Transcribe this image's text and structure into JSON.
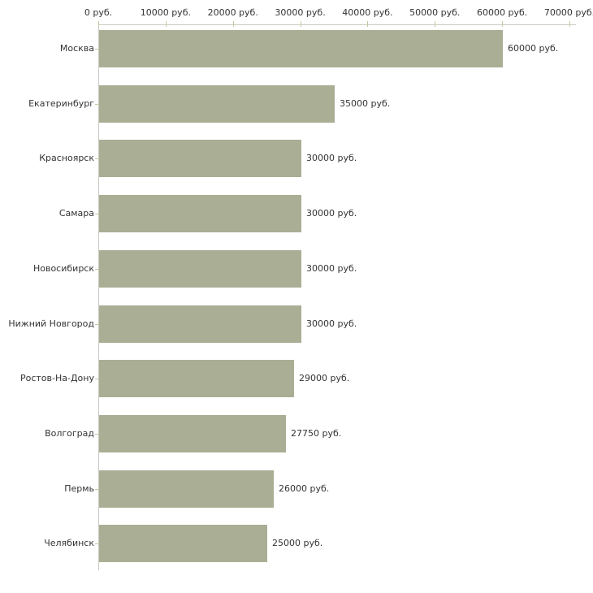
{
  "page": {
    "background": "#ffffff"
  },
  "chart_data": {
    "type": "bar",
    "orientation": "horizontal",
    "title": "",
    "xlabel": "",
    "ylabel": "",
    "unit_suffix": " руб.",
    "categories": [
      "Москва",
      "Екатеринбург",
      "Красноярск",
      "Самара",
      "Новосибирск",
      "Нижний Новгород",
      "Ростов-На-Дону",
      "Волгоград",
      "Пермь",
      "Челябинск"
    ],
    "values": [
      60000,
      35000,
      30000,
      30000,
      30000,
      30000,
      29000,
      27750,
      26000,
      25000
    ],
    "value_labels": [
      "60000 руб.",
      "35000 руб.",
      "30000 руб.",
      "30000 руб.",
      "30000 руб.",
      "30000 руб.",
      "29000 руб.",
      "27750 руб.",
      "26000 руб.",
      "25000 руб."
    ],
    "x_tick_values": [
      0,
      10000,
      20000,
      30000,
      40000,
      50000,
      60000,
      70000
    ],
    "x_tick_labels": [
      "0 руб.",
      "10000 руб.",
      "20000 руб.",
      "30000 руб.",
      "40000 руб.",
      "50000 руб.",
      "60000 руб.",
      "70000 руб."
    ],
    "xlim": [
      0,
      70000
    ],
    "grid": "off",
    "legend": "none",
    "colors": {
      "bar": "#aaae94",
      "axis": "#c9c9c3",
      "tick": "#c5c99c",
      "text": "#333333"
    }
  }
}
